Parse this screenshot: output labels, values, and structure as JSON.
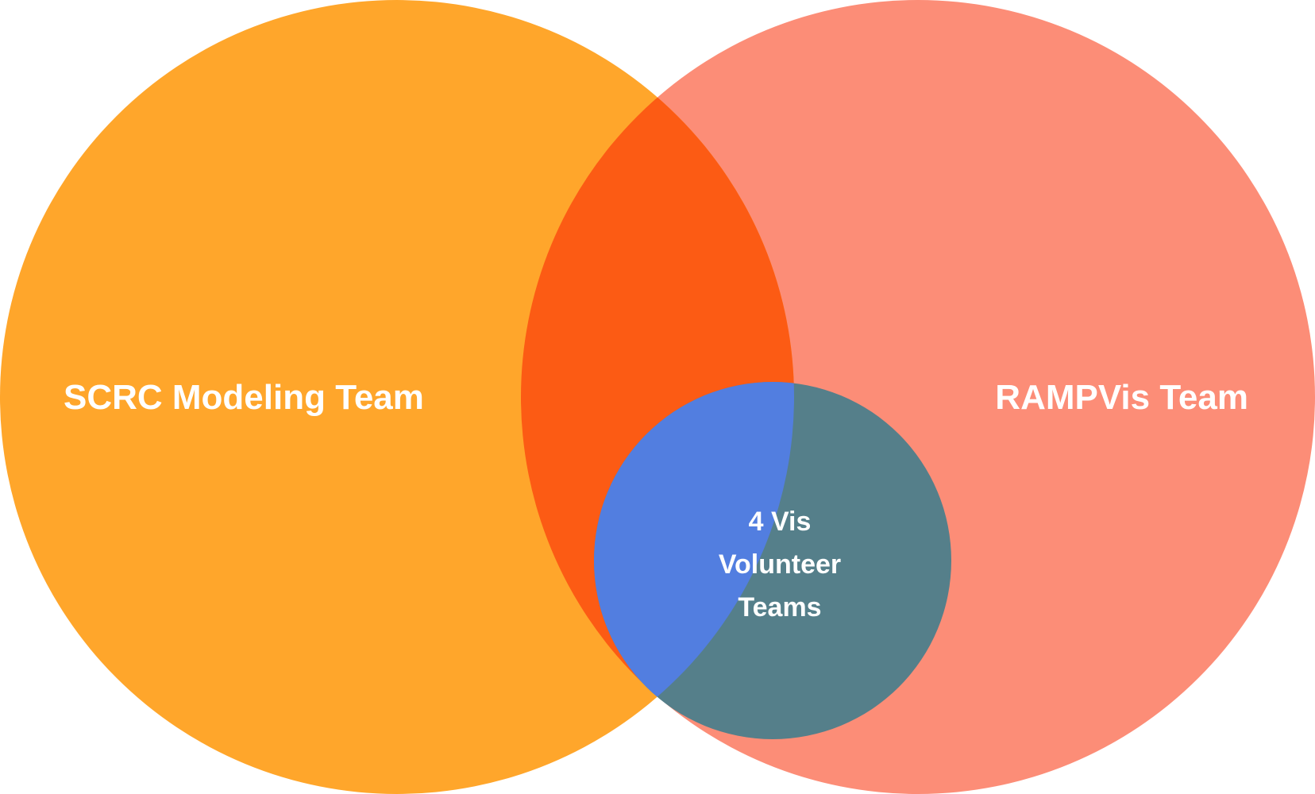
{
  "diagram": {
    "type": "venn",
    "sets": [
      {
        "id": "left",
        "label": "SCRC Modeling Team",
        "color": "#FFA62B"
      },
      {
        "id": "right",
        "label": "RAMPVis Team",
        "color": "#FC8D77"
      },
      {
        "id": "inner",
        "label_lines": [
          "4 Vis",
          "Volunteer",
          "Teams"
        ],
        "color": "#557F8A"
      }
    ],
    "overlap_colors": {
      "left_right": "#FC5B14",
      "inner_left": "#527EE0"
    }
  }
}
